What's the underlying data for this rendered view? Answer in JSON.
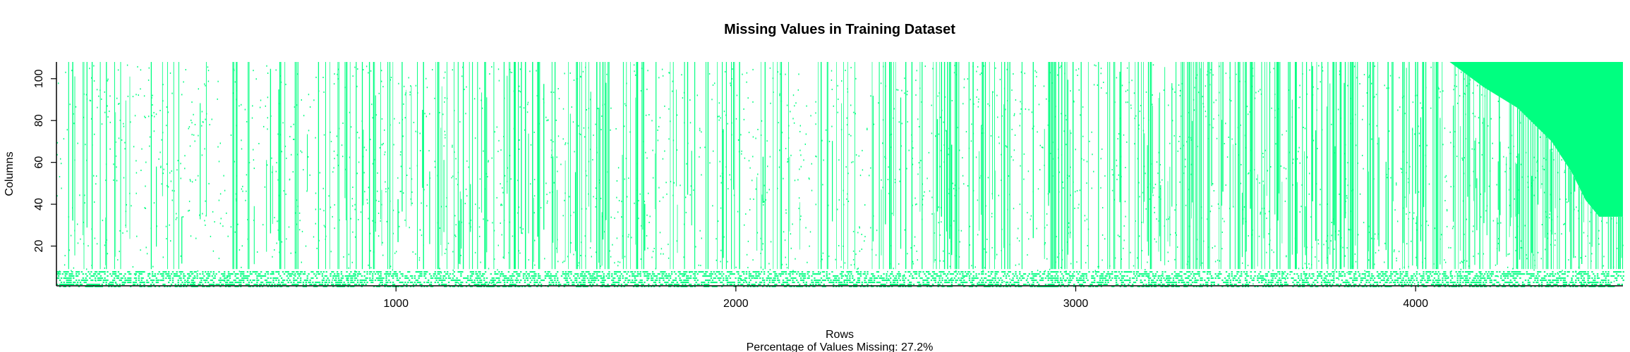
{
  "chart_data": {
    "type": "heatmap",
    "title": "Missing Values in Training Dataset",
    "xlabel": "Rows",
    "ylabel": "Columns",
    "subtitle": "Percentage of Values Missing: 27.2%",
    "xlim": [
      1,
      4610
    ],
    "ylim": [
      1,
      108
    ],
    "x_ticks": [
      1000,
      2000,
      3000,
      4000
    ],
    "y_ticks": [
      20,
      40,
      60,
      80,
      100
    ],
    "percent_missing": 27.2,
    "missing_color": "#00FF80",
    "present_color": "#FFFFFF",
    "grid": false,
    "legend": "none",
    "missing_block": {
      "description": "rows above ~4100 are fully missing in the upper columns; the missing-region lower boundary descends with row index",
      "boundary": [
        [
          4100,
          108
        ],
        [
          4200,
          96
        ],
        [
          4300,
          86
        ],
        [
          4400,
          70
        ],
        [
          4460,
          55
        ],
        [
          4500,
          42
        ],
        [
          4540,
          34
        ],
        [
          4610,
          34
        ]
      ]
    },
    "dense_missing_columns": [
      1,
      2,
      3,
      4,
      5,
      6,
      7,
      8
    ]
  }
}
